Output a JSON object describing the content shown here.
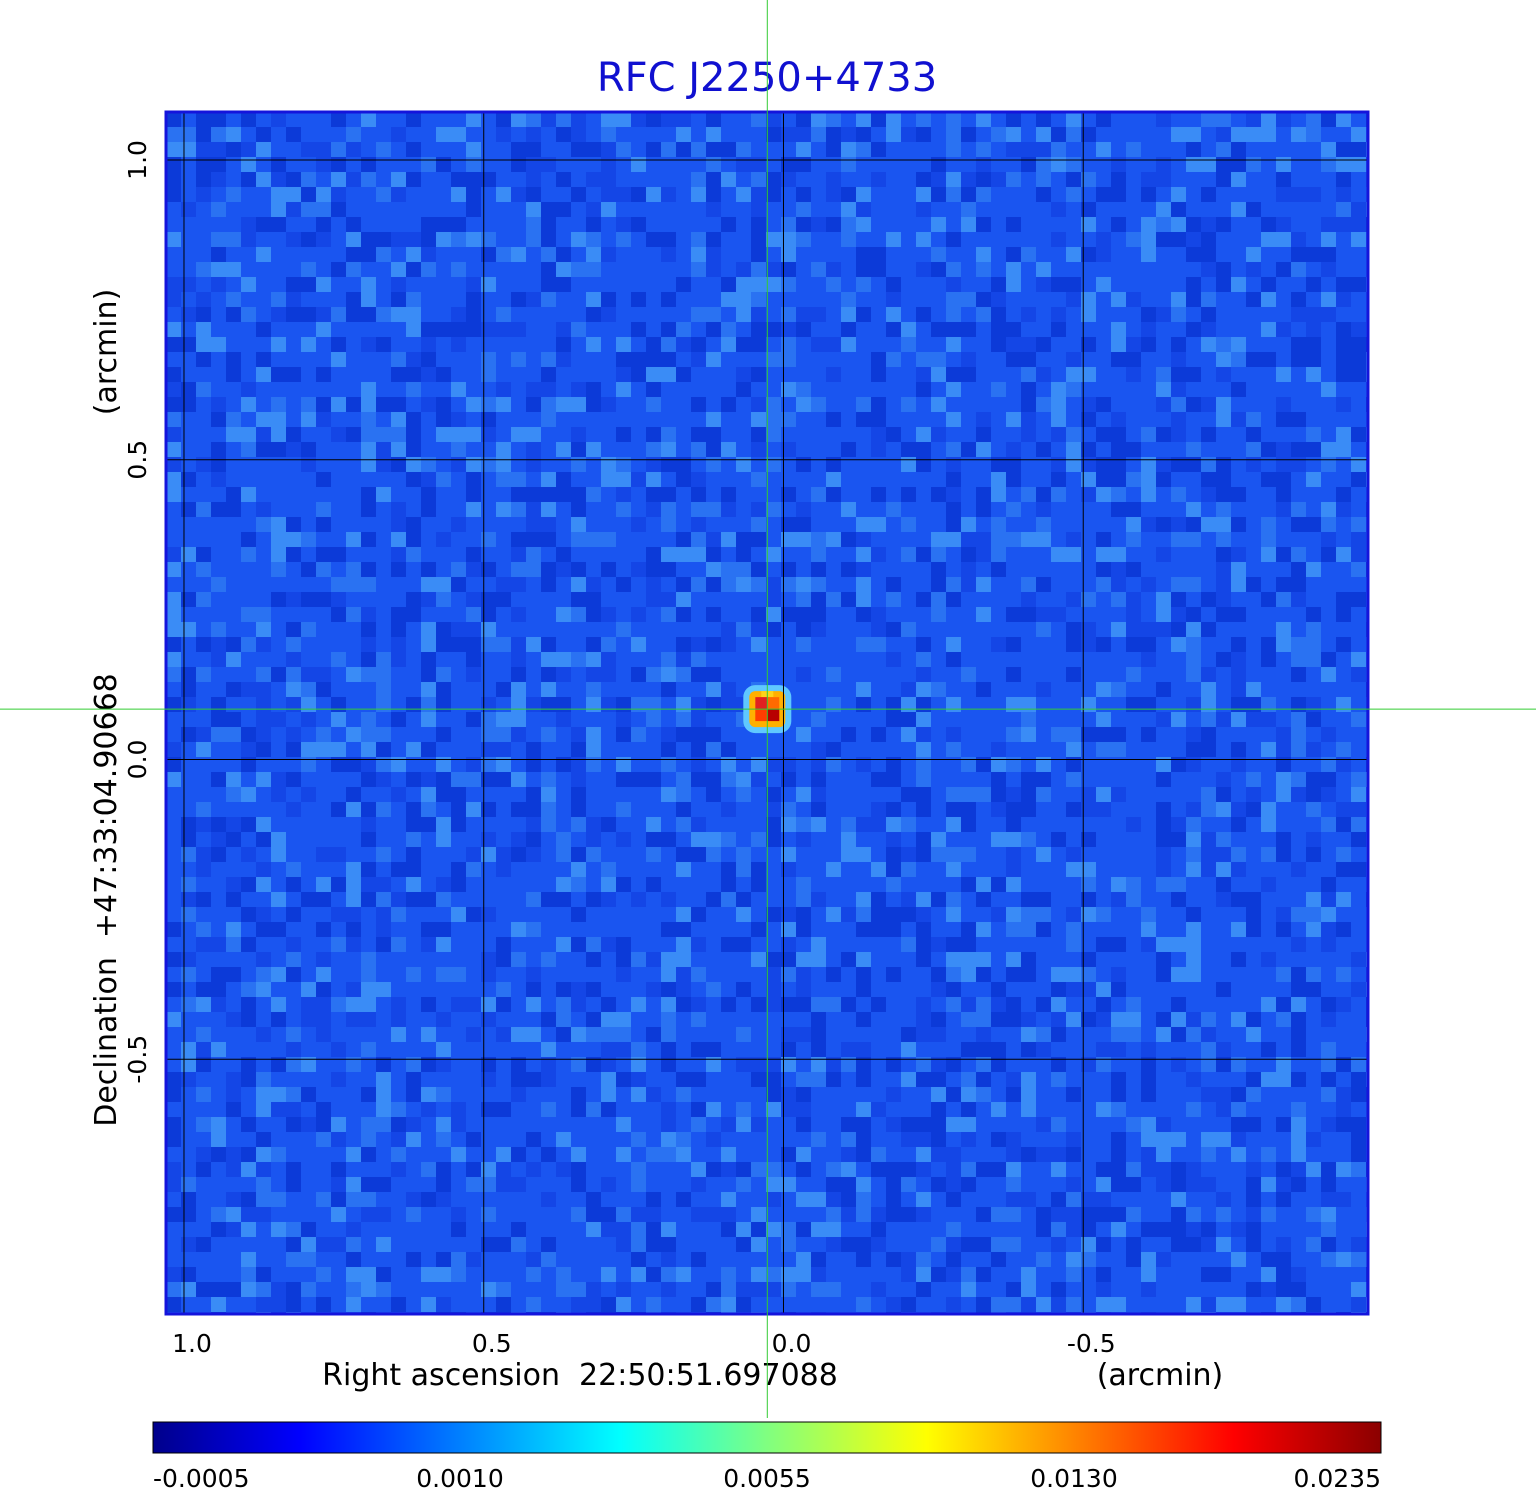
{
  "chart_data": {
    "type": "heatmap",
    "title": "RFC J2250+4733",
    "xlabel": "Right ascension  22:50:51.697088",
    "xunit": "(arcmin)",
    "ylabel": "Declination  +47:33:04.90668",
    "yunit": "(arcmin)",
    "xlim": [
      1.03,
      -0.975
    ],
    "ylim": [
      -0.925,
      1.08
    ],
    "x_ticks": [
      1.0,
      0.5,
      0.0,
      -0.5
    ],
    "x_tick_labels": [
      "1.0",
      "0.5",
      "0.0",
      "-0.5"
    ],
    "y_ticks": [
      1.0,
      0.5,
      0.0,
      -0.5
    ],
    "y_tick_labels": [
      "1.0",
      "0.5",
      "0.0",
      "-0.5"
    ],
    "grid": true,
    "crosshair": {
      "x": 0.027,
      "y": 0.084
    },
    "source": {
      "x": 0.027,
      "y": 0.084,
      "peak": 0.0235
    },
    "background_level": 0.0002,
    "colorbar": {
      "ticks": [
        -0.0005,
        0.001,
        0.0055,
        0.013,
        0.0235
      ],
      "tick_labels": [
        "-0.0005",
        "0.0010",
        "0.0055",
        "0.0130",
        "0.0235"
      ],
      "colormap": "jet",
      "colors": [
        "#00008b",
        "#0000ff",
        "#00ffff",
        "#ffff00",
        "#ff0000",
        "#8b0000"
      ]
    },
    "colors": {
      "title": "#1010d0",
      "frame": "#1414dc",
      "crosshair": "#33cc33",
      "grid": "#000000"
    }
  }
}
